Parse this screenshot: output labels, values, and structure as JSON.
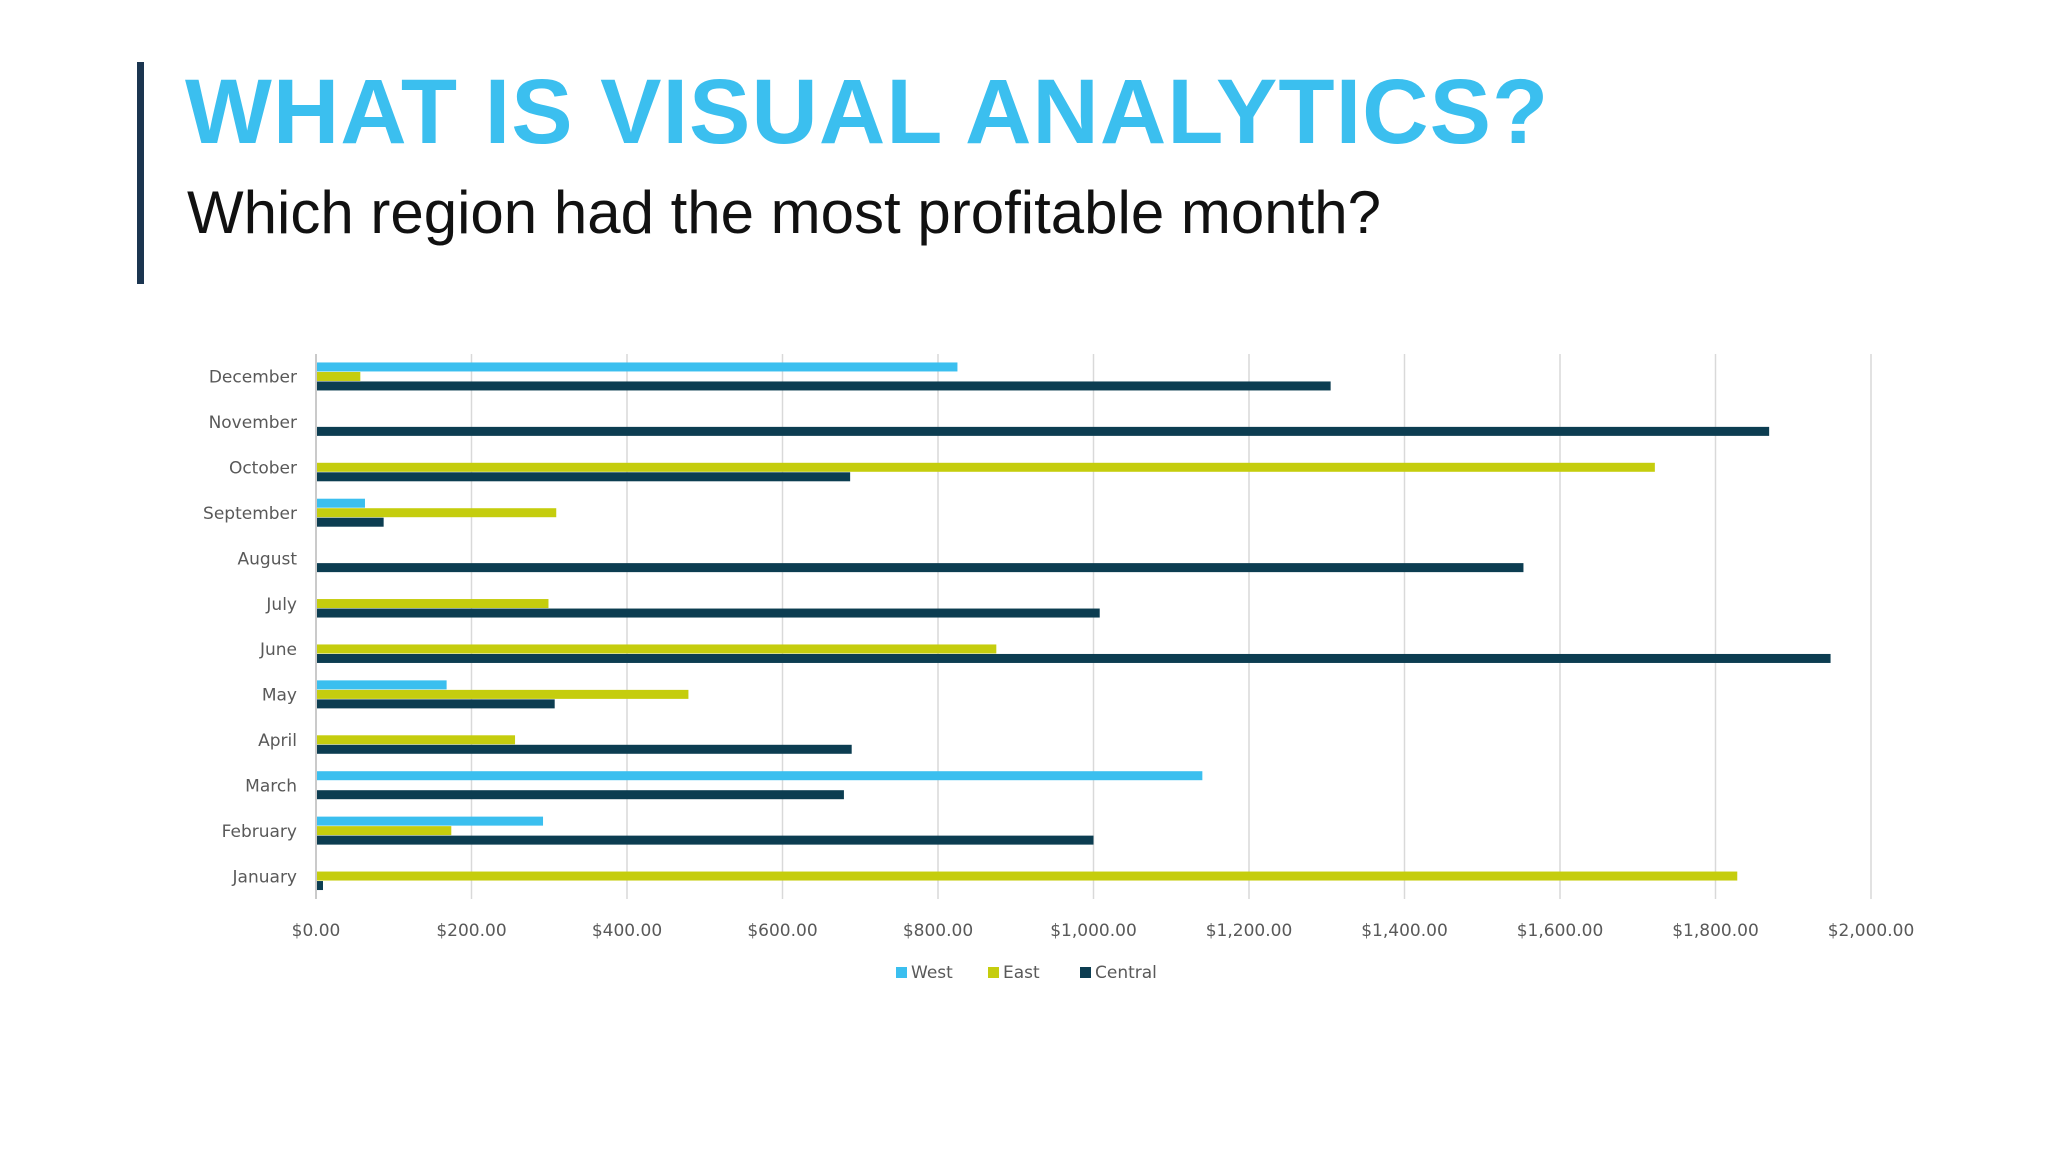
{
  "slide": {
    "title": "WHAT IS VISUAL ANALYTICS?",
    "subtitle": "Which region had the most profitable month?"
  },
  "colors": {
    "title": "#3bbfef",
    "accent_bar": "#1b3550",
    "West": "#3bbfef",
    "East": "#c5cd0e",
    "Central": "#0c3d51",
    "grid": "#d9d9d9",
    "axis_text": "#595959"
  },
  "chart_data": {
    "type": "bar",
    "orientation": "horizontal",
    "categories": [
      "January",
      "February",
      "March",
      "April",
      "May",
      "June",
      "July",
      "August",
      "September",
      "October",
      "November",
      "December"
    ],
    "series": [
      {
        "name": "West",
        "values": [
          0,
          292,
          1140,
          0,
          168,
          0,
          0,
          0,
          63,
          0,
          0,
          825
        ]
      },
      {
        "name": "East",
        "values": [
          1828,
          174,
          0,
          256,
          479,
          875,
          299,
          0,
          309,
          1722,
          0,
          57
        ]
      },
      {
        "name": "Central",
        "values": [
          9,
          1000,
          679,
          689,
          307,
          1948,
          1008,
          1553,
          87,
          687,
          1869,
          1305
        ]
      }
    ],
    "xlim": [
      0,
      2000
    ],
    "x_ticks": [
      "$0.00",
      "$200.00",
      "$400.00",
      "$600.00",
      "$800.00",
      "$1,000.00",
      "$1,200.00",
      "$1,400.00",
      "$1,600.00",
      "$1,800.00",
      "$2,000.00"
    ],
    "grid": true,
    "legend_position": "bottom"
  }
}
